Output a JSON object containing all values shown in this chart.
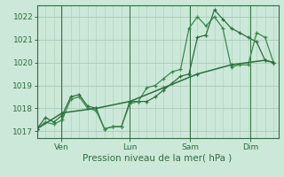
{
  "title": "",
  "xlabel": "Pression niveau de la mer( hPa )",
  "bg_color": "#cce8d8",
  "grid_color": "#aacebb",
  "line_color1": "#2d6e3e",
  "line_color2": "#3a8a4e",
  "ylim": [
    1016.7,
    1022.5
  ],
  "yticks": [
    1017,
    1018,
    1019,
    1020,
    1021,
    1022
  ],
  "xlim": [
    0,
    1.0
  ],
  "xtick_pos": [
    0.1,
    0.385,
    0.635,
    0.885
  ],
  "xtick_lab": [
    "Ven",
    "Lun",
    "Sam",
    "Dim"
  ],
  "vline_pos": [
    0.1,
    0.385,
    0.635,
    0.885
  ],
  "series1_x": [
    0.0,
    0.035,
    0.07,
    0.105,
    0.14,
    0.175,
    0.21,
    0.245,
    0.28,
    0.315,
    0.35,
    0.385,
    0.42,
    0.455,
    0.49,
    0.525,
    0.56,
    0.595,
    0.63,
    0.665,
    0.7,
    0.735,
    0.77,
    0.805,
    0.84,
    0.875,
    0.91,
    0.945,
    0.98
  ],
  "series1_y": [
    1017.1,
    1017.6,
    1017.4,
    1017.7,
    1018.5,
    1018.6,
    1018.1,
    1018.0,
    1017.1,
    1017.2,
    1017.2,
    1018.3,
    1018.3,
    1018.3,
    1018.5,
    1018.8,
    1019.1,
    1019.4,
    1019.5,
    1021.1,
    1021.2,
    1022.3,
    1021.9,
    1021.5,
    1021.3,
    1021.1,
    1020.9,
    1020.1,
    1020.0
  ],
  "series2_x": [
    0.0,
    0.035,
    0.07,
    0.105,
    0.14,
    0.175,
    0.21,
    0.245,
    0.28,
    0.315,
    0.35,
    0.385,
    0.42,
    0.455,
    0.49,
    0.525,
    0.56,
    0.595,
    0.63,
    0.665,
    0.7,
    0.735,
    0.77,
    0.805,
    0.84,
    0.875,
    0.91,
    0.945,
    0.98
  ],
  "series2_y": [
    1017.1,
    1017.4,
    1017.3,
    1017.5,
    1018.4,
    1018.5,
    1018.0,
    1017.9,
    1017.1,
    1017.2,
    1017.2,
    1018.2,
    1018.3,
    1018.9,
    1019.0,
    1019.3,
    1019.6,
    1019.7,
    1021.5,
    1022.0,
    1021.6,
    1022.0,
    1021.5,
    1019.8,
    1019.9,
    1019.9,
    1021.3,
    1021.1,
    1020.0
  ],
  "series3_x": [
    0.0,
    0.105,
    0.245,
    0.385,
    0.525,
    0.665,
    0.805,
    0.945,
    0.98
  ],
  "series3_y": [
    1017.1,
    1017.8,
    1018.0,
    1018.3,
    1018.9,
    1019.5,
    1019.9,
    1020.1,
    1020.0
  ]
}
